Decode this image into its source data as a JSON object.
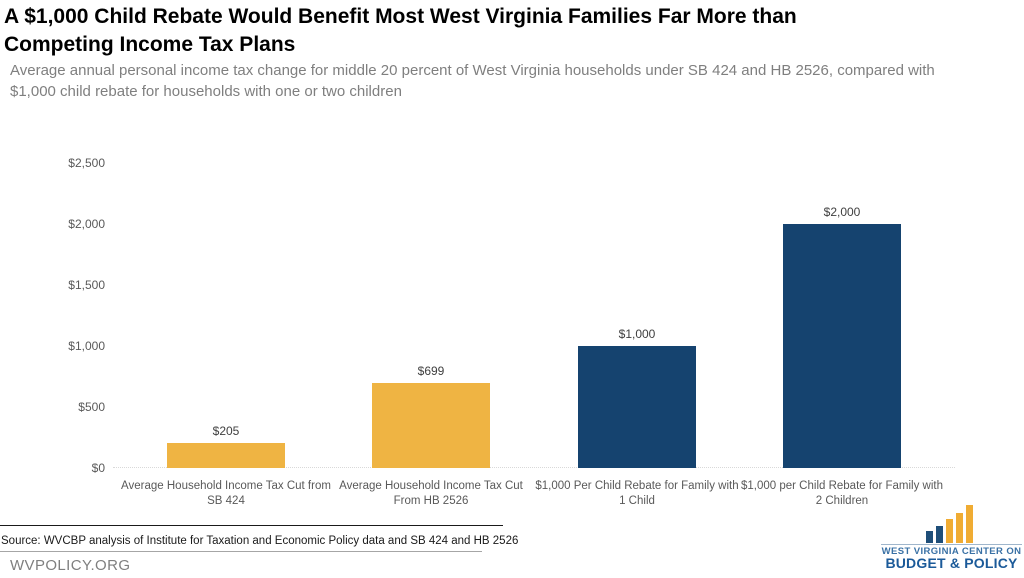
{
  "header": {
    "title_lines": [
      "A $1,000 Child Rebate Would Benefit Most West Virginia Families Far More than",
      "Competing Income Tax Plans"
    ],
    "subtitle_lines": [
      "Average annual personal income tax change for middle 20 percent of West Virginia households under SB 424 and HB 2526, compared with",
      "$1,000 child rebate for households with one or two children"
    ]
  },
  "chart_data": {
    "type": "bar",
    "title": "A $1,000 Child Rebate Would Benefit Most West Virginia Families Far More than Competing Income Tax Plans",
    "subtitle": "Average annual personal income tax change for middle 20 percent of West Virginia households under SB 424 and HB 2526, compared with $1,000 child rebate for households with one or two children",
    "categories": [
      "Average Household Income Tax Cut from SB 424",
      "Average Household Income Tax Cut From HB 2526",
      "$1,000 Per Child Rebate for Family with 1 Child",
      "$1,000 per Child Rebate for Family with 2 Children"
    ],
    "values": [
      205,
      699,
      1000,
      2000
    ],
    "value_labels": [
      "$205",
      "$699",
      "$1,000",
      "$2,000"
    ],
    "bar_colors": [
      "#EFB443",
      "#EFB443",
      "#15436F",
      "#15436F"
    ],
    "xlabel": "",
    "ylabel": "",
    "ylim": [
      0,
      2500
    ],
    "y_tick_values": [
      0,
      500,
      1000,
      1500,
      2000,
      2500
    ],
    "y_tick_labels": [
      "$0",
      "$500",
      "$1,000",
      "$1,500",
      "$2,000",
      "$2,500"
    ],
    "grid": false,
    "baseline_style": "dotted",
    "legend": "none"
  },
  "footer": {
    "source": "Source: WVCBP analysis of Institute for Taxation and Economic Policy data and SB 424 and HB 2526",
    "site": "WVPOLICY.ORG"
  },
  "logo": {
    "icon": "ascending-bars-icon",
    "org_line1": "WEST VIRGINIA CENTER ON",
    "org_line2": "BUDGET & POLICY",
    "icon_colors": {
      "blue": "#1E4E79",
      "yellow": "#F0AC33"
    },
    "text_colors": {
      "line1": "#3A71A5",
      "line2": "#1B5A99"
    }
  },
  "colors": {
    "background": "#FFFFFF",
    "title": "#000000",
    "subtitle": "#7F7F7F",
    "axis_labels": "#595959",
    "value_labels": "#404040",
    "baseline": "#D9D9D9",
    "source_rule_top": "#1A1A1A",
    "source_rule_bottom": "#A6A6A6",
    "accent_yellow": "#EFB443",
    "accent_blue": "#15436F"
  }
}
